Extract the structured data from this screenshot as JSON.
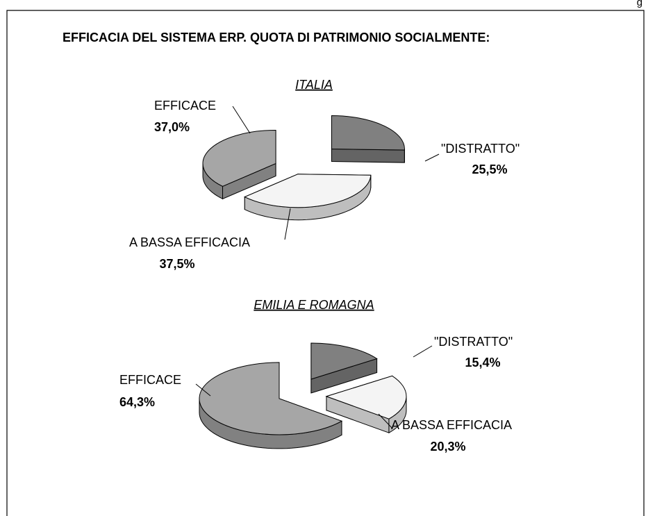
{
  "page_label": "g",
  "title": "EFFICACIA DEL SISTEMA ERP. QUOTA DI PATRIMONIO SOCIALMENTE:",
  "chart_data": [
    {
      "type": "pie",
      "title": "ITALIA",
      "categories": [
        "\"DISTRATTO\"",
        "A BASSA EFFICACIA",
        "EFFICACE"
      ],
      "values": [
        25.5,
        37.5,
        37.0
      ],
      "value_labels": [
        "25,5%",
        "37,5%",
        "37,0%"
      ],
      "colors": [
        "#808080",
        "#f4f4f4",
        "#a6a6a6"
      ]
    },
    {
      "type": "pie",
      "title": "EMILIA E ROMAGNA",
      "categories": [
        "\"DISTRATTO\"",
        "A BASSA EFFICACIA",
        "EFFICACE"
      ],
      "values": [
        15.4,
        20.3,
        64.3
      ],
      "value_labels": [
        "15,4%",
        "20,3%",
        "64,3%"
      ],
      "colors": [
        "#808080",
        "#f4f4f4",
        "#a6a6a6"
      ]
    }
  ]
}
